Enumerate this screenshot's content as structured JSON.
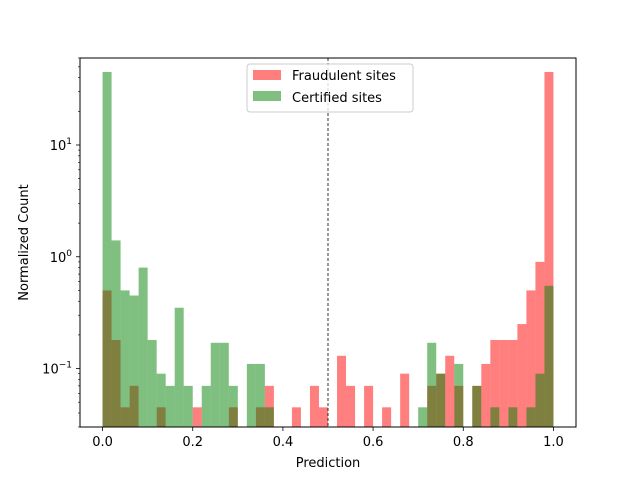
{
  "chart_data": {
    "type": "bar",
    "xlabel": "Prediction",
    "ylabel": "Normalized Count",
    "xlim": [
      -0.05,
      1.05
    ],
    "ylim": [
      0.03,
      60
    ],
    "yscale": "log",
    "bin_width": 0.02,
    "x_ticks": [
      "0.0",
      "0.2",
      "0.4",
      "0.6",
      "0.8",
      "1.0"
    ],
    "x_tick_values": [
      0.0,
      0.2,
      0.4,
      0.6,
      0.8,
      1.0
    ],
    "y_ticks": [
      {
        "value": 0.1,
        "base": "10",
        "exp": "−1"
      },
      {
        "value": 1,
        "base": "10",
        "exp": "0"
      },
      {
        "value": 10,
        "base": "10",
        "exp": "1"
      }
    ],
    "threshold": 0.5,
    "legend": {
      "position": "top-center"
    },
    "series": [
      {
        "name": "Fraudulent sites",
        "color": "#ff0000",
        "alpha": 0.5,
        "bin_starts": [
          0.0,
          0.02,
          0.04,
          0.06,
          0.12,
          0.2,
          0.28,
          0.34,
          0.36,
          0.42,
          0.46,
          0.48,
          0.52,
          0.54,
          0.58,
          0.62,
          0.66,
          0.72,
          0.74,
          0.76,
          0.78,
          0.82,
          0.84,
          0.86,
          0.88,
          0.9,
          0.92,
          0.94,
          0.96,
          0.98
        ],
        "values": [
          0.5,
          0.18,
          0.045,
          0.07,
          0.045,
          0.045,
          0.045,
          0.045,
          0.07,
          0.045,
          0.07,
          0.045,
          0.13,
          0.07,
          0.07,
          0.045,
          0.09,
          0.07,
          0.09,
          0.13,
          0.07,
          0.07,
          0.11,
          0.18,
          0.18,
          0.18,
          0.25,
          0.5,
          0.9,
          45
        ]
      },
      {
        "name": "Certified sites",
        "color": "#008000",
        "alpha": 0.5,
        "bin_starts": [
          0.0,
          0.02,
          0.04,
          0.06,
          0.08,
          0.1,
          0.12,
          0.14,
          0.16,
          0.18,
          0.22,
          0.24,
          0.26,
          0.28,
          0.32,
          0.34,
          0.36,
          0.7,
          0.72,
          0.74,
          0.78,
          0.82,
          0.86,
          0.9,
          0.94,
          0.96,
          0.98
        ],
        "values": [
          45,
          1.4,
          0.5,
          0.45,
          0.8,
          0.18,
          0.09,
          0.07,
          0.35,
          0.07,
          0.07,
          0.17,
          0.17,
          0.07,
          0.11,
          0.11,
          0.045,
          0.045,
          0.17,
          0.09,
          0.11,
          0.07,
          0.045,
          0.045,
          0.045,
          0.09,
          0.55
        ]
      }
    ]
  }
}
